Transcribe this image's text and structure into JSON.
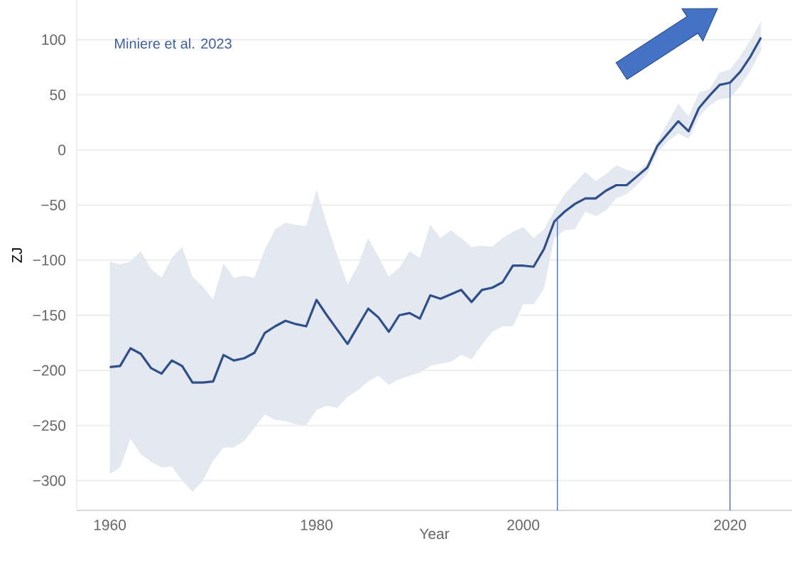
{
  "chart_data": {
    "type": "line",
    "xlabel": "Year",
    "ylabel": "ZJ",
    "annotations": [
      "Miniere et al. 2023"
    ],
    "x": [
      1960,
      1961,
      1962,
      1963,
      1964,
      1965,
      1966,
      1967,
      1968,
      1969,
      1970,
      1971,
      1972,
      1973,
      1974,
      1975,
      1976,
      1977,
      1978,
      1979,
      1980,
      1981,
      1982,
      1983,
      1984,
      1985,
      1986,
      1987,
      1988,
      1989,
      1990,
      1991,
      1992,
      1993,
      1994,
      1995,
      1996,
      1997,
      1998,
      1999,
      2000,
      2001,
      2002,
      2003,
      2004,
      2005,
      2006,
      2007,
      2008,
      2009,
      2010,
      2011,
      2012,
      2013,
      2014,
      2015,
      2016,
      2017,
      2018,
      2019,
      2020,
      2021,
      2022,
      2023
    ],
    "series": [
      {
        "color": "#2f4f8a",
        "values": [
          -197,
          -196,
          -180,
          -185,
          -198,
          -203,
          -191,
          -196,
          -211,
          -211,
          -210,
          -186,
          -191,
          -189,
          -184,
          -166,
          -160,
          -155,
          -158,
          -160,
          -136,
          -150,
          -163,
          -176,
          -160,
          -144,
          -152,
          -165,
          -150,
          -148,
          -153,
          -132,
          -135,
          -131,
          -127,
          -138,
          -127,
          -125,
          -120,
          -105,
          -105,
          -106,
          -90,
          -65,
          -56,
          -49,
          -44,
          -44,
          -37,
          -32,
          -32,
          -24,
          -16,
          4,
          15,
          26,
          17,
          38,
          49,
          59,
          61,
          71,
          85,
          102
        ],
        "upper": [
          -101,
          -104,
          -101,
          -92,
          -108,
          -116,
          -98,
          -88,
          -115,
          -124,
          -136,
          -103,
          -116,
          -114,
          -116,
          -90,
          -72,
          -66,
          -68,
          -69,
          -36,
          -67,
          -95,
          -122,
          -105,
          -80,
          -97,
          -115,
          -107,
          -92,
          -98,
          -68,
          -80,
          -73,
          -80,
          -88,
          -87,
          -88,
          -80,
          -74,
          -70,
          -80,
          -72,
          -55,
          -40,
          -30,
          -20,
          -28,
          -22,
          -14,
          -18,
          -20,
          -12,
          8,
          25,
          42,
          30,
          52,
          55,
          70,
          73,
          85,
          100,
          117
        ],
        "lower": [
          -294,
          -288,
          -262,
          -276,
          -283,
          -288,
          -287,
          -300,
          -310,
          -300,
          -282,
          -270,
          -270,
          -264,
          -252,
          -240,
          -245,
          -246,
          -249,
          -250,
          -236,
          -232,
          -234,
          -224,
          -218,
          -210,
          -205,
          -213,
          -208,
          -205,
          -202,
          -196,
          -194,
          -192,
          -186,
          -190,
          -177,
          -165,
          -160,
          -160,
          -140,
          -140,
          -126,
          -80,
          -73,
          -72,
          -56,
          -60,
          -55,
          -44,
          -40,
          -32,
          -22,
          -2,
          8,
          15,
          10,
          30,
          40,
          46,
          47,
          58,
          72,
          90
        ]
      }
    ],
    "ref_lines": [
      {
        "axis": "x",
        "value": 2003.3,
        "color": "#4472c4"
      },
      {
        "axis": "x",
        "value": 2020,
        "color": "#4472c4"
      }
    ],
    "xlim": [
      1956.8,
      2026
    ],
    "ylim": [
      -327,
      136
    ],
    "xticks": [
      1960,
      1980,
      2000,
      2020
    ],
    "yticks": [
      {
        "value": -300,
        "label": "−300"
      },
      {
        "value": -250,
        "label": "−250"
      },
      {
        "value": -200,
        "label": "−200"
      },
      {
        "value": -150,
        "label": "−150"
      },
      {
        "value": -100,
        "label": "−100"
      },
      {
        "value": -50,
        "label": "−50"
      },
      0,
      50,
      100
    ],
    "grid": "y",
    "line_style": "solid"
  }
}
